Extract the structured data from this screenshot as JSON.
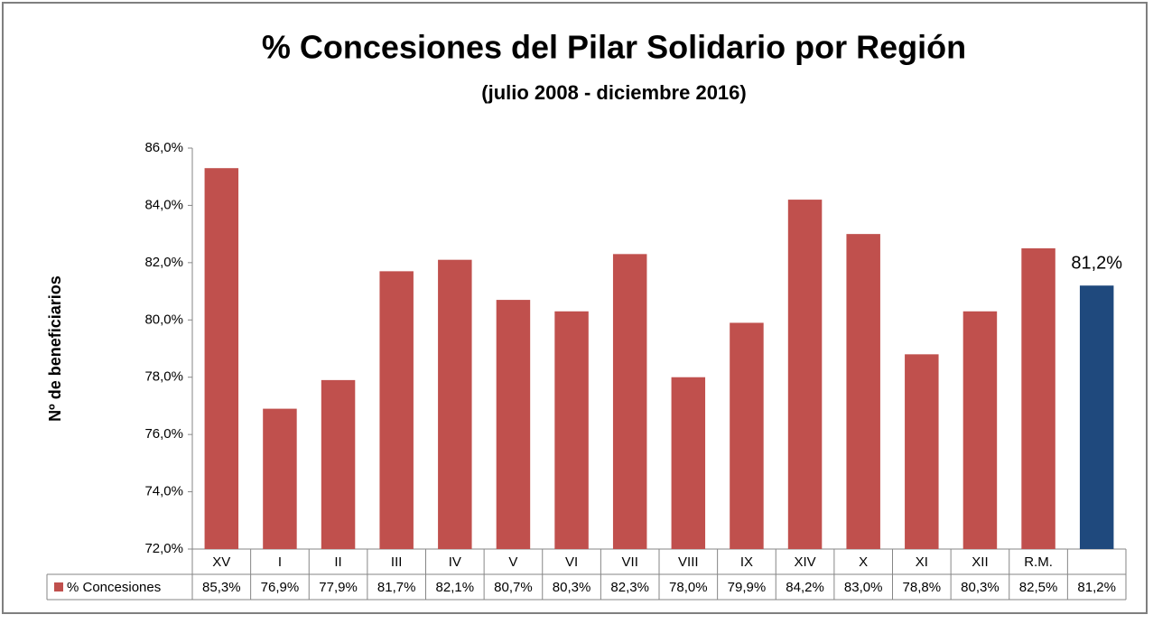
{
  "chart_data": {
    "type": "bar",
    "title": "% Concesiones del Pilar Solidario por Región",
    "subtitle": "(julio 2008 - diciembre 2016)",
    "y_label": "Nº de beneficiarios",
    "categories": [
      "XV",
      "I",
      "II",
      "III",
      "IV",
      "V",
      "VI",
      "VII",
      "VIII",
      "IX",
      "XIV",
      "X",
      "XI",
      "XII",
      "R.M.",
      null
    ],
    "series": [
      {
        "name": "% Concesiones",
        "color": "#c0504d",
        "colors": [
          "#c0504d",
          "#c0504d",
          "#c0504d",
          "#c0504d",
          "#c0504d",
          "#c0504d",
          "#c0504d",
          "#c0504d",
          "#c0504d",
          "#c0504d",
          "#c0504d",
          "#c0504d",
          "#c0504d",
          "#c0504d",
          "#c0504d",
          "#1f497d"
        ],
        "values": [
          85.3,
          76.9,
          77.9,
          81.7,
          82.1,
          80.7,
          80.3,
          82.3,
          78.0,
          79.9,
          84.2,
          83.0,
          78.8,
          80.3,
          82.5,
          81.2
        ],
        "value_labels": [
          "85,3%",
          "76,9%",
          "77,9%",
          "81,7%",
          "82,1%",
          "80,7%",
          "80,3%",
          "82,3%",
          "78,0%",
          "79,9%",
          "84,2%",
          "83,0%",
          "78,8%",
          "80,3%",
          "82,5%",
          "81,2%"
        ],
        "labeled_points": [
          15
        ]
      }
    ],
    "ylim": [
      72,
      86
    ],
    "yticks": [
      {
        "value": 72,
        "label": "72,0%"
      },
      {
        "value": 74,
        "label": "74,0%"
      },
      {
        "value": 76,
        "label": "76,0%"
      },
      {
        "value": 78,
        "label": "78,0%"
      },
      {
        "value": 80,
        "label": "80,0%"
      },
      {
        "value": 82,
        "label": "82,0%"
      },
      {
        "value": 84,
        "label": "84,0%"
      },
      {
        "value": 86,
        "label": "86,0%"
      }
    ],
    "grid": false
  }
}
